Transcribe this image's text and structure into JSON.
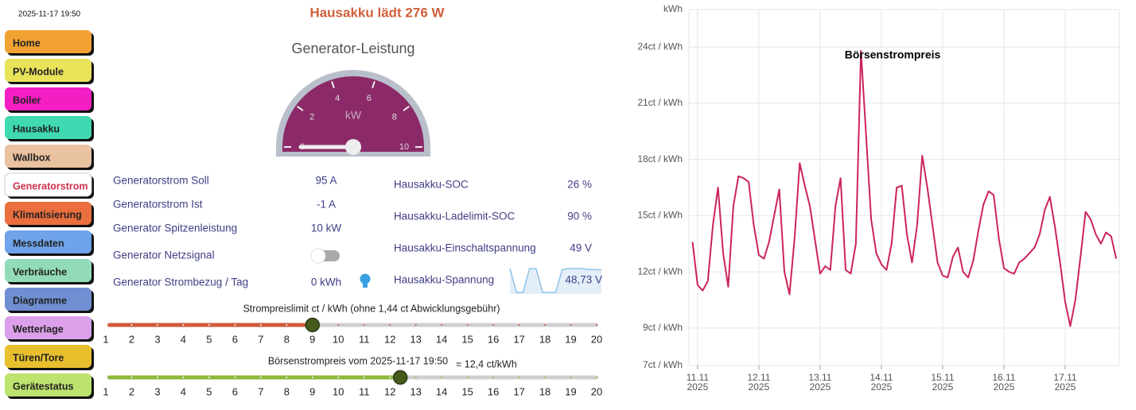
{
  "header": {
    "timestamp": "2025-11-17 19:50",
    "title": "Hausakku lädt 276 W"
  },
  "nav": [
    {
      "label": "Home",
      "color": "#f2a233"
    },
    {
      "label": "PV-Module",
      "color": "#e9e35a"
    },
    {
      "label": "Boiler",
      "color": "#f41fc2"
    },
    {
      "label": "Hausakku",
      "color": "#3fd9b2"
    },
    {
      "label": "Wallbox",
      "color": "#e9c2a0"
    },
    {
      "label": "Generatorstrom",
      "color": "#ffffff",
      "active": true
    },
    {
      "label": "Klimatisierung",
      "color": "#ea6e3e"
    },
    {
      "label": "Messdaten",
      "color": "#6fa3ea"
    },
    {
      "label": "Verbräuche",
      "color": "#92dbb9"
    },
    {
      "label": "Diagramme",
      "color": "#6f8fd2"
    },
    {
      "label": "Wetterlage",
      "color": "#dca0ea"
    },
    {
      "label": "Türen/Tore",
      "color": "#e8c02e"
    },
    {
      "label": "Gerätestatus",
      "color": "#bde26e"
    }
  ],
  "gauge": {
    "title": "Generator-Leistung",
    "unit": "kW",
    "ticks": [
      0,
      2,
      4,
      6,
      8,
      10
    ],
    "value": 0
  },
  "generator_table": {
    "rows": [
      {
        "label": "Generatorstrom Soll",
        "value": "95 A"
      },
      {
        "label": "Generatorstrom Ist",
        "value": "-1 A"
      },
      {
        "label": "Generator Spitzenleistung",
        "value": "10 kW"
      },
      {
        "label": "Generator Netzsignal",
        "switch": false
      },
      {
        "label": "Generator Strombezug / Tag",
        "value": "0 kWh"
      }
    ]
  },
  "battery_table": {
    "rows": [
      {
        "label": "Hausakku-SOC",
        "value": "26 %"
      },
      {
        "label": "Hausakku-Ladelimit-SOC",
        "value": "90 %"
      },
      {
        "label": "Hausakku-Einschaltspannung",
        "value": "49 V"
      },
      {
        "label": "Hausakku-Spannung",
        "value": "48,73 V",
        "sparkline": [
          48.9,
          46.2,
          46.2,
          48.9,
          48.9,
          46.2,
          46.2,
          46.2,
          48.8,
          48.9,
          48.9,
          48.9,
          48.8,
          48.8,
          48.73
        ]
      }
    ]
  },
  "price_limit_slider": {
    "label": "Strompreislimit ct / kWh (ohne 1,44 ct Abwicklungsgebühr)",
    "value": 9,
    "color": "#d05a3a",
    "ticks": [
      1,
      2,
      3,
      4,
      5,
      6,
      7,
      8,
      9,
      10,
      11,
      12,
      13,
      14,
      15,
      16,
      17,
      18,
      19,
      20
    ]
  },
  "spot_price_slider": {
    "label": "Börsenstrompreis vom 2025-11-17 19:50",
    "value": 12.4,
    "value_label": "= 12,4 ct/kWh",
    "color": "#8cb93b",
    "ticks": [
      1,
      2,
      3,
      4,
      5,
      6,
      7,
      8,
      9,
      10,
      11,
      12,
      13,
      14,
      15,
      16,
      17,
      18,
      19,
      20
    ]
  },
  "chart_data": {
    "type": "line",
    "title": "Börsenstrompreis",
    "y_label": "kWh",
    "color": "#cc2457",
    "grid": true,
    "values": [
      13.6,
      11.3,
      11.0,
      11.5,
      14.5,
      16.5,
      13.0,
      11.2,
      15.5,
      17.1,
      17.0,
      16.8,
      14.5,
      12.9,
      12.7,
      13.6,
      15.0,
      16.4,
      12.0,
      10.8,
      13.8,
      17.8,
      16.6,
      15.5,
      13.7,
      11.9,
      12.3,
      12.1,
      15.5,
      17.0,
      12.1,
      11.9,
      13.5,
      23.8,
      19.3,
      14.8,
      13.0,
      12.4,
      12.1,
      13.5,
      16.5,
      16.6,
      14.0,
      12.5,
      14.5,
      18.2,
      16.5,
      14.5,
      12.5,
      11.8,
      11.7,
      12.8,
      13.3,
      12.0,
      11.7,
      12.6,
      14.2,
      15.6,
      16.3,
      16.1,
      13.8,
      12.2,
      12.0,
      11.9,
      12.5,
      12.7,
      13.0,
      13.3,
      14.0,
      15.3,
      16.0,
      14.4,
      12.5,
      10.4,
      9.1,
      10.5,
      12.8,
      15.2,
      14.8,
      14.0,
      13.5,
      14.1,
      13.9,
      12.7
    ],
    "xlim": [
      -0.7,
      83.6
    ],
    "xticks": [
      {
        "value": 1,
        "label": "11.11\n2025"
      },
      {
        "value": 13,
        "label": "12.11\n2025"
      },
      {
        "value": 25,
        "label": "13.11\n2025"
      },
      {
        "value": 37,
        "label": "14.11\n2025"
      },
      {
        "value": 49,
        "label": "15.11\n2025"
      },
      {
        "value": 61,
        "label": "16.11\n2025"
      },
      {
        "value": 73,
        "label": "17.11\n2025"
      }
    ],
    "ylim": [
      7,
      26
    ],
    "yticks": [
      {
        "value": 7,
        "label": "7ct / kWh"
      },
      {
        "value": 9,
        "label": "9ct / kWh"
      },
      {
        "value": 12,
        "label": "12ct / kWh"
      },
      {
        "value": 15,
        "label": "15ct / kWh"
      },
      {
        "value": 18,
        "label": "18ct / kWh"
      },
      {
        "value": 21,
        "label": "21ct / kWh"
      },
      {
        "value": 24,
        "label": "24ct / kWh"
      }
    ]
  }
}
